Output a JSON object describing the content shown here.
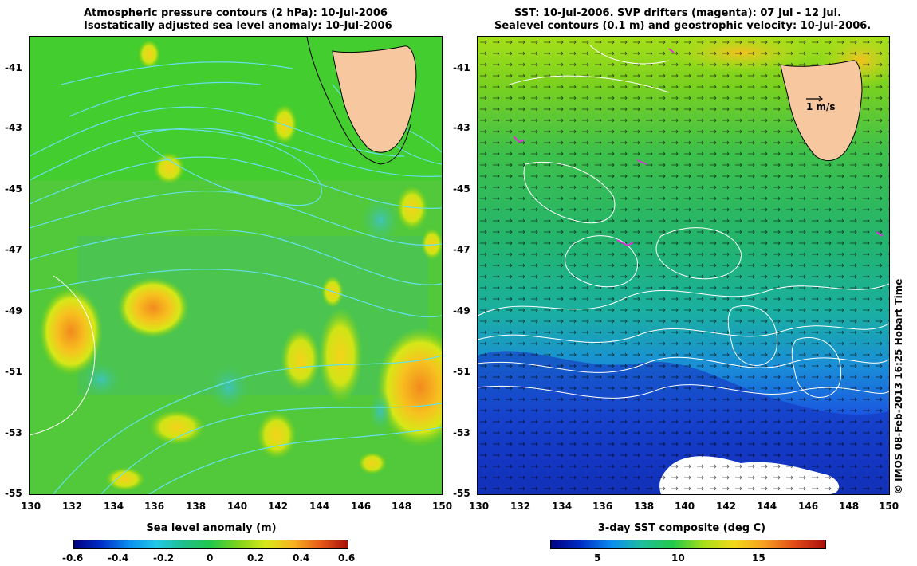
{
  "left_panel": {
    "title_line1": "Atmospheric pressure contours (2 hPa): 10-Jul-2006",
    "title_line2": "Isostatically adjusted sea level anomaly: 10-Jul-2006",
    "y_ticks": [
      "-41",
      "-43",
      "-45",
      "-47",
      "-49",
      "-51",
      "-53",
      "-55"
    ],
    "x_ticks": [
      "130",
      "132",
      "134",
      "136",
      "138",
      "140",
      "142",
      "144",
      "146",
      "148",
      "150"
    ],
    "colorbar_title": "Sea level anomaly (m)",
    "colorbar_ticks": [
      "-0.6",
      "-0.4",
      "-0.2",
      "0",
      "0.2",
      "0.4",
      "0.6"
    ]
  },
  "right_panel": {
    "title_line1": "SST: 10-Jul-2006. SVP drifters (magenta): 07 Jul - 12 Jul.",
    "title_line2": "Sealevel contours (0.1 m) and geostrophic velocity: 10-Jul-2006.",
    "y_ticks": [
      "-41",
      "-43",
      "-45",
      "-47",
      "-49",
      "-51",
      "-53",
      "-55"
    ],
    "x_ticks": [
      "130",
      "132",
      "134",
      "136",
      "138",
      "140",
      "142",
      "144",
      "146",
      "148",
      "150"
    ],
    "scale_label": "1 m/s",
    "colorbar_title": "3-day SST composite (deg C)",
    "colorbar_ticks": [
      "5",
      "10",
      "15"
    ]
  },
  "copyright": "© IMOS 08-Feb-2013 16:25 Hobart Time",
  "colors": {
    "land": "#f7c8a0",
    "pressure_contour": "#66e0e8",
    "sealevel_contour": "#ffffff",
    "arrow": "#000000"
  }
}
